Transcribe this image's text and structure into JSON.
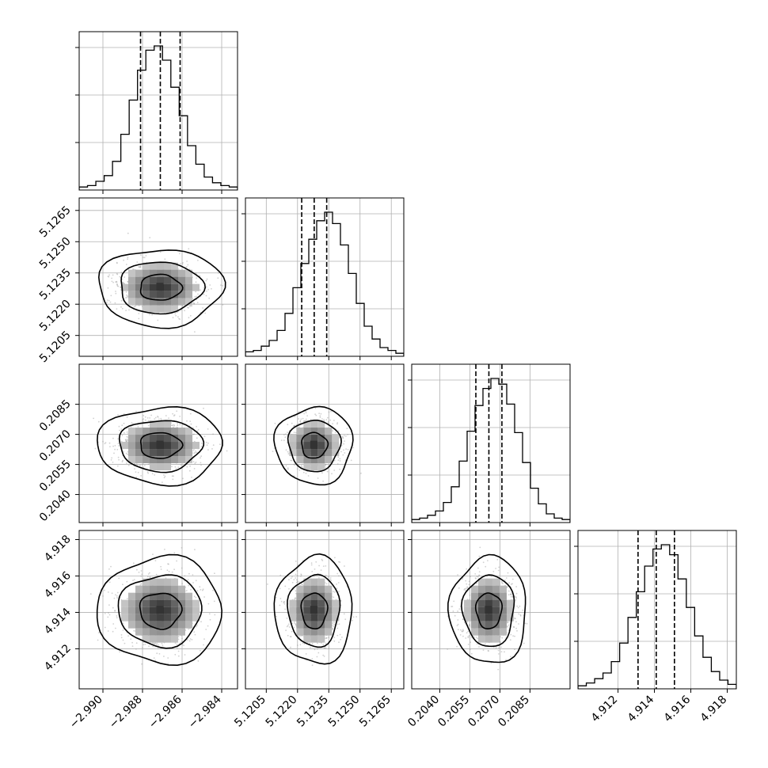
{
  "chart_data": {
    "type": "corner",
    "title": "",
    "grid": true,
    "params": [
      {
        "range": [
          -2.9912,
          -2.9832
        ],
        "ticks": [
          -2.99,
          -2.988,
          -2.986,
          -2.984
        ],
        "tick_labels": [
          "−2.990",
          "−2.988",
          "−2.986",
          "−2.984"
        ],
        "quantiles": [
          -2.9881,
          -2.9871,
          -2.9861
        ],
        "mean": -2.9871,
        "sd": 0.00105,
        "hist": [
          0.01,
          0.02,
          0.05,
          0.09,
          0.19,
          0.38,
          0.62,
          0.83,
          0.97,
          1.0,
          0.9,
          0.71,
          0.51,
          0.3,
          0.17,
          0.08,
          0.04,
          0.02,
          0.01
        ]
      },
      {
        "range": [
          5.1195,
          5.1271
        ],
        "ticks": [
          5.1205,
          5.122,
          5.1235,
          5.125,
          5.1265
        ],
        "tick_labels": [
          "5.1205",
          "5.1220",
          "5.1235",
          "5.1250",
          "5.1265"
        ],
        "quantiles": [
          5.1222,
          5.1228,
          5.1234
        ],
        "mean": 5.1228,
        "sd": 0.00062,
        "hist": [
          0.02,
          0.03,
          0.06,
          0.1,
          0.17,
          0.29,
          0.47,
          0.64,
          0.81,
          0.94,
          1.0,
          0.92,
          0.77,
          0.57,
          0.36,
          0.2,
          0.11,
          0.05,
          0.03,
          0.01
        ]
      },
      {
        "range": [
          0.2026,
          0.2105
        ],
        "ticks": [
          0.204,
          0.2055,
          0.207,
          0.2085
        ],
        "tick_labels": [
          "0.2040",
          "0.2055",
          "0.2070",
          "0.2085"
        ],
        "quantiles": [
          0.2058,
          0.20645,
          0.2071
        ],
        "mean": 0.20645,
        "sd": 0.00064,
        "hist": [
          0.01,
          0.02,
          0.04,
          0.07,
          0.13,
          0.24,
          0.42,
          0.63,
          0.81,
          0.93,
          1.0,
          0.96,
          0.82,
          0.62,
          0.41,
          0.23,
          0.12,
          0.05,
          0.02,
          0.01
        ]
      },
      {
        "range": [
          4.9098,
          4.9185
        ],
        "ticks": [
          4.912,
          4.914,
          4.916,
          4.918
        ],
        "tick_labels": [
          "4.912",
          "4.914",
          "4.916",
          "4.918"
        ],
        "quantiles": [
          4.9131,
          4.9141,
          4.9151
        ],
        "mean": 4.9141,
        "sd": 0.00098,
        "hist": [
          0.01,
          0.03,
          0.06,
          0.1,
          0.18,
          0.31,
          0.49,
          0.67,
          0.85,
          0.97,
          1.0,
          0.93,
          0.76,
          0.56,
          0.36,
          0.21,
          0.11,
          0.05,
          0.02
        ]
      }
    ],
    "contour_levels_sigma": [
      0.5,
      1.0,
      1.5
    ]
  },
  "colors": {
    "line": "#000000",
    "grid": "#b0b0b0",
    "scatter": "#9a9a9a"
  }
}
